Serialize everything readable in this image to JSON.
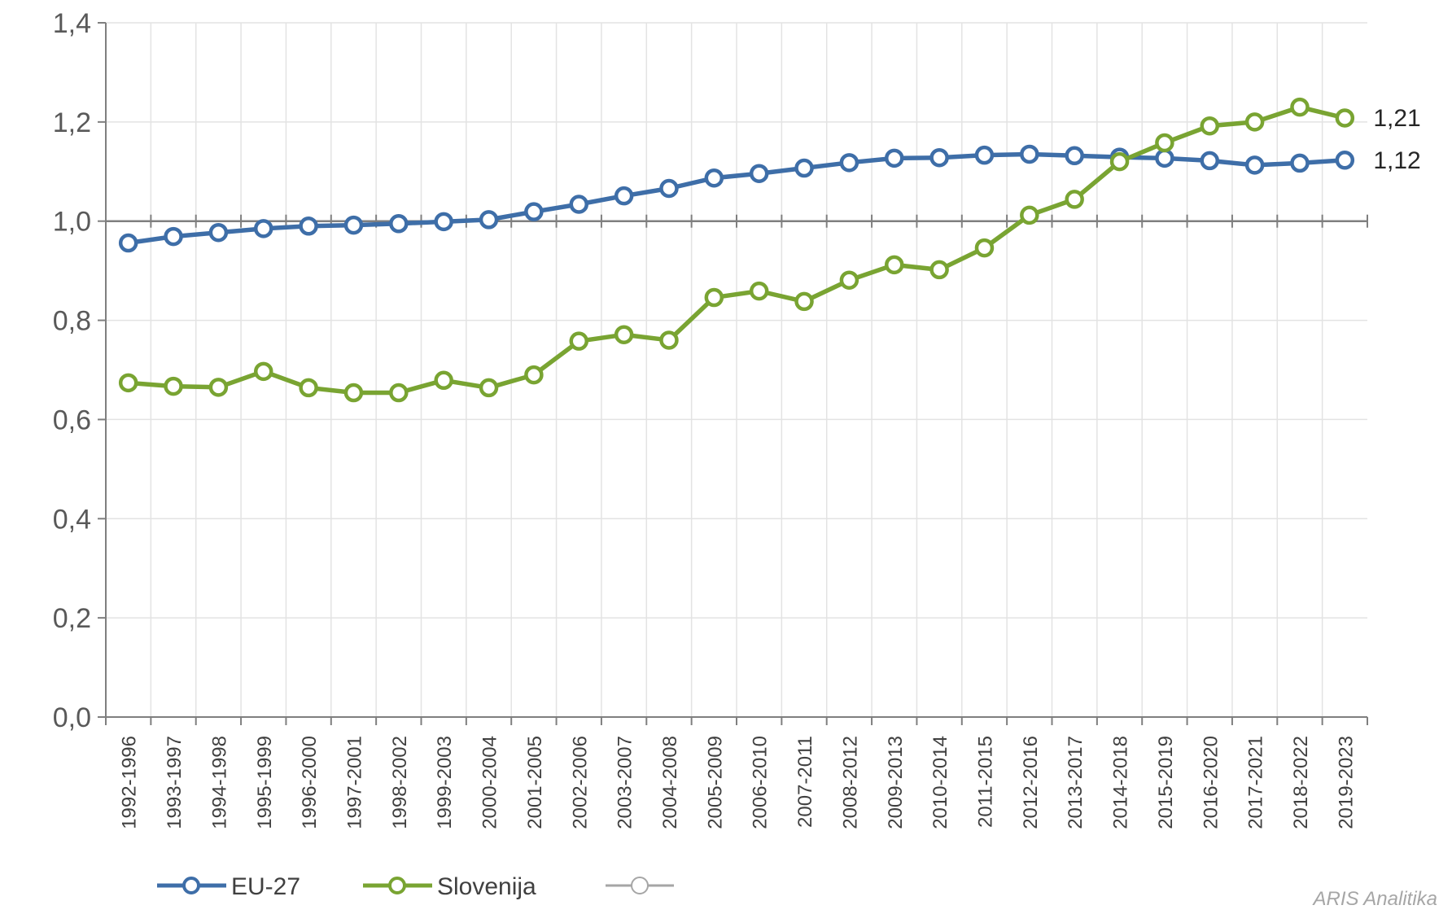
{
  "chart_data": {
    "type": "line",
    "categories": [
      "1992-1996",
      "1993-1997",
      "1994-1998",
      "1995-1999",
      "1996-2000",
      "1997-2001",
      "1998-2002",
      "1999-2003",
      "2000-2004",
      "2001-2005",
      "2002-2006",
      "2003-2007",
      "2004-2008",
      "2005-2009",
      "2006-2010",
      "2007-2011",
      "2008-2012",
      "2009-2013",
      "2010-2014",
      "2011-2015",
      "2012-2016",
      "2013-2017",
      "2014-2018",
      "2015-2019",
      "2016-2020",
      "2017-2021",
      "2018-2022",
      "2019-2023"
    ],
    "series": [
      {
        "name": "EU-27",
        "color": "#3e6ea8",
        "values": [
          0.956,
          0.969,
          0.977,
          0.985,
          0.99,
          0.992,
          0.995,
          0.999,
          1.003,
          1.019,
          1.034,
          1.051,
          1.066,
          1.087,
          1.096,
          1.107,
          1.118,
          1.127,
          1.128,
          1.133,
          1.135,
          1.132,
          1.129,
          1.127,
          1.122,
          1.113,
          1.117,
          1.123
        ]
      },
      {
        "name": "Slovenija",
        "color": "#79a432",
        "values": [
          0.674,
          0.667,
          0.665,
          0.697,
          0.664,
          0.654,
          0.654,
          0.679,
          0.664,
          0.69,
          0.758,
          0.771,
          0.76,
          0.846,
          0.859,
          0.838,
          0.881,
          0.912,
          0.902,
          0.946,
          1.012,
          1.044,
          1.12,
          1.158,
          1.192,
          1.2,
          1.23,
          1.208
        ]
      }
    ],
    "end_labels": [
      "1,21",
      "1,12"
    ],
    "y_tick_labels": [
      "0,0",
      "0,2",
      "0,4",
      "0,6",
      "0,8",
      "1,0",
      "1,2",
      "1,4"
    ],
    "ylim": [
      0,
      1.4
    ],
    "reference_line": 1.0,
    "grid": true,
    "legend_position": "bottom-left",
    "third_legend_entry_color": "#a6a6a6",
    "xlabel": "",
    "ylabel": "",
    "title": ""
  },
  "legend": {
    "items": [
      "EU-27",
      "Slovenija",
      ""
    ]
  },
  "watermark": "ARIS Analitika"
}
